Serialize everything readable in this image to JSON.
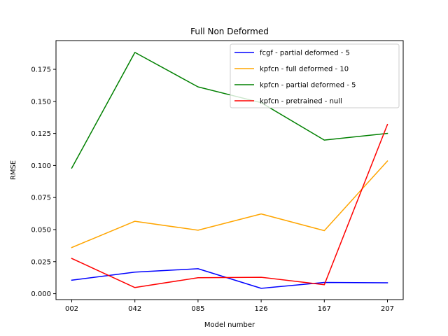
{
  "chart_data": {
    "type": "line",
    "title": "Full Non Deformed",
    "xlabel": "Model number",
    "ylabel": "RMSE",
    "categories": [
      "002",
      "042",
      "085",
      "126",
      "167",
      "207"
    ],
    "ylim": [
      -0.0046,
      0.1974
    ],
    "yticks": [
      0.0,
      0.025,
      0.05,
      0.075,
      0.1,
      0.125,
      0.15,
      0.175
    ],
    "ytick_labels": [
      "0.000",
      "0.025",
      "0.050",
      "0.075",
      "0.100",
      "0.125",
      "0.150",
      "0.175"
    ],
    "grid": false,
    "legend_position": "top-right",
    "series": [
      {
        "name": "fcgf - partial deformed - 5",
        "color": "#0000ff",
        "values": [
          0.0105,
          0.0168,
          0.0195,
          0.0042,
          0.0088,
          0.0085
        ]
      },
      {
        "name": "kpfcn - full deformed - 10",
        "color": "#ffa500",
        "values": [
          0.036,
          0.0565,
          0.0495,
          0.0622,
          0.0492,
          0.1035
        ]
      },
      {
        "name": "kpfcn - partial deformed - 5",
        "color": "#008000",
        "values": [
          0.098,
          0.1882,
          0.1613,
          0.149,
          0.1198,
          0.125
        ]
      },
      {
        "name": "kpfcn - pretrained - null",
        "color": "#ff0000",
        "values": [
          0.0275,
          0.0048,
          0.0125,
          0.0128,
          0.007,
          0.132
        ]
      }
    ]
  }
}
